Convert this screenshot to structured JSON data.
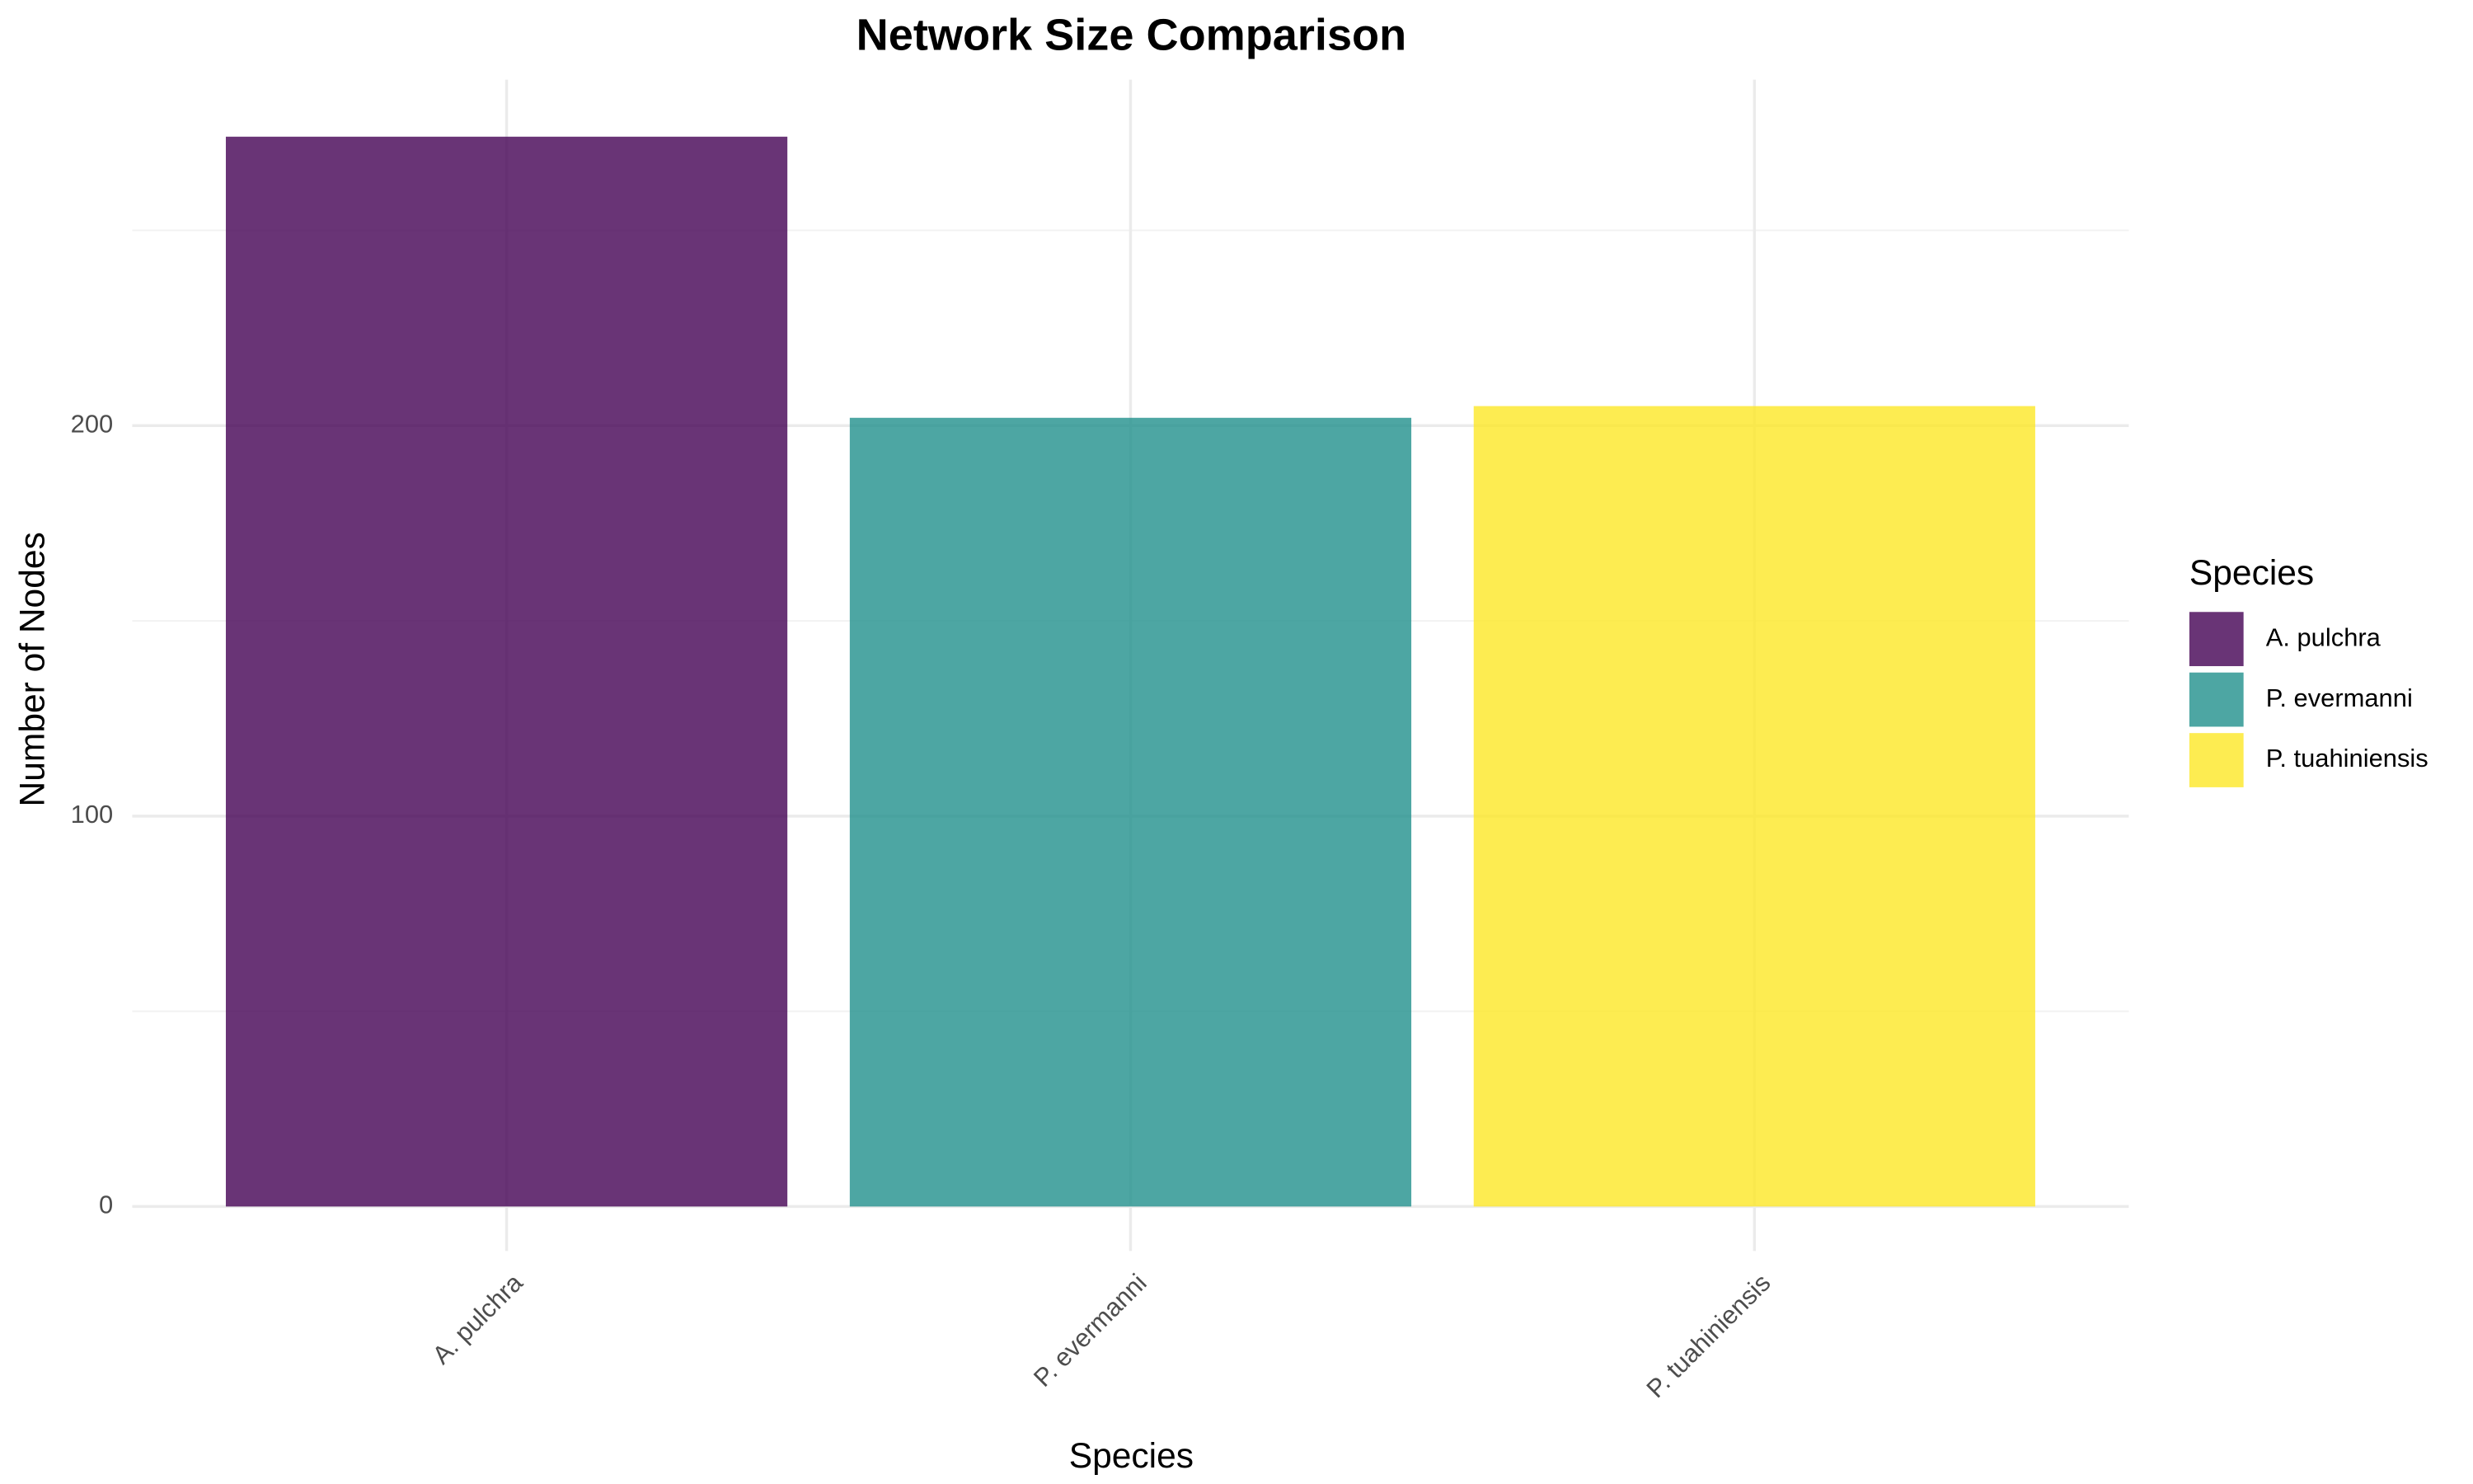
{
  "chart_data": {
    "type": "bar",
    "title": "Network Size Comparison",
    "x_label": "Species",
    "y_label": "Number of Nodes",
    "categories": [
      "A. pulchra",
      "P. evermanni",
      "P. tuahiniensis"
    ],
    "values": [
      274,
      202,
      205
    ],
    "colors": [
      "#440154",
      "#21908C",
      "#FDE725"
    ],
    "opacity": 0.8,
    "ylim": [
      -11.4,
      288.6
    ],
    "yticks": [
      0,
      100,
      200
    ],
    "grid": true,
    "legend": {
      "title": "Species",
      "position": "right"
    }
  }
}
